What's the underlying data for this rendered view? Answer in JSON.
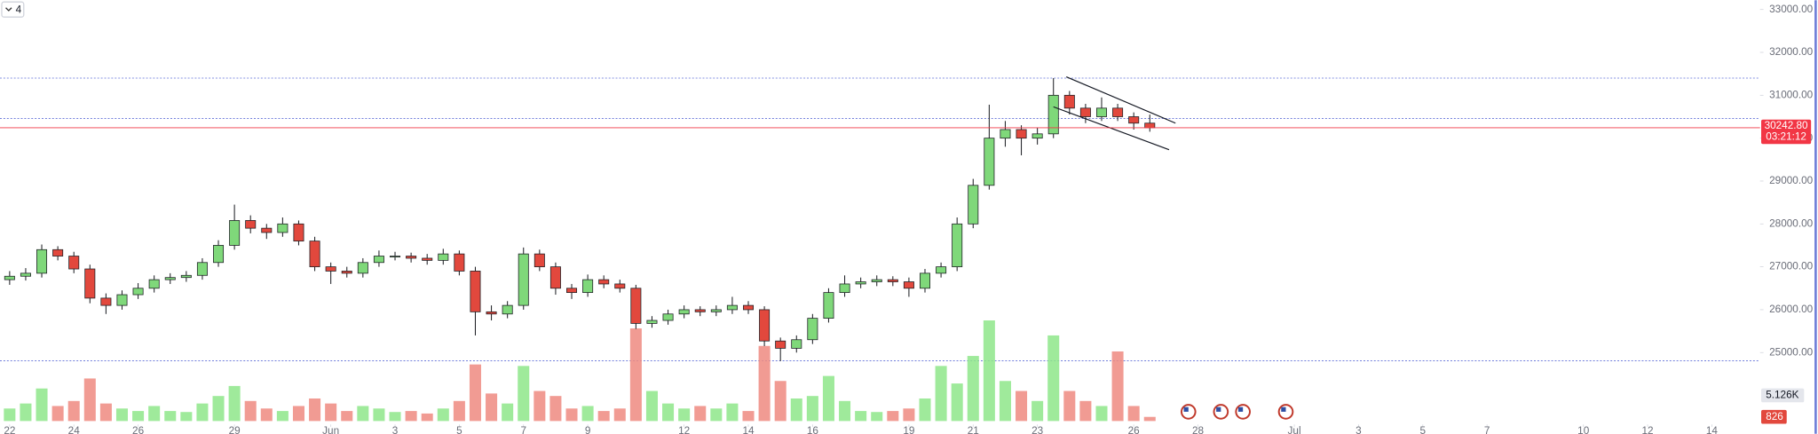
{
  "chart_data": {
    "type": "candlestick",
    "interval": "4",
    "x": [
      0,
      0.5,
      1,
      1.5,
      2,
      2.5,
      3,
      3.5,
      4,
      4.5,
      5,
      5.5,
      6,
      6.5,
      7,
      7.5,
      8,
      8.5,
      9,
      9.5,
      10,
      10.5,
      11,
      11.5,
      12,
      12.5,
      13,
      13.5,
      14,
      14.5,
      15,
      15.5,
      16,
      16.5,
      17,
      17.5,
      18,
      18.5,
      19,
      19.5,
      20,
      20.5,
      21,
      21.5,
      22,
      22.5,
      23,
      23.5,
      24,
      24.5,
      25,
      25.5,
      26,
      26.5,
      27,
      27.5,
      28,
      28.5,
      29,
      29.5,
      30,
      30.5,
      31,
      31.5,
      32,
      32.5,
      33,
      33.5,
      34,
      34.5,
      35,
      35.5
    ],
    "open": [
      26700,
      26780,
      26850,
      27400,
      27250,
      26950,
      26270,
      26100,
      26350,
      26500,
      26700,
      26750,
      26800,
      27100,
      27500,
      28080,
      27900,
      27800,
      28000,
      27600,
      27000,
      26900,
      26850,
      27100,
      27250,
      27250,
      27200,
      27150,
      27300,
      26900,
      25950,
      25900,
      26100,
      27300,
      27000,
      26500,
      26400,
      26700,
      26600,
      26500,
      25680,
      25750,
      25900,
      26000,
      25950,
      26000,
      26100,
      26000,
      25270,
      25100,
      25300,
      25800,
      26400,
      26600,
      26650,
      26700,
      26650,
      26500,
      26850,
      27000,
      28000,
      28900,
      30000,
      30200,
      30000,
      30100,
      31000,
      30700,
      30500,
      30700,
      30500,
      30350
    ],
    "high": [
      26900,
      26970,
      27520,
      27480,
      27350,
      27050,
      26380,
      26450,
      26620,
      26800,
      26850,
      26900,
      27200,
      27620,
      28450,
      28200,
      28000,
      28150,
      28080,
      27700,
      27100,
      27000,
      27200,
      27380,
      27350,
      27330,
      27300,
      27420,
      27380,
      27000,
      26100,
      26200,
      27450,
      27400,
      27100,
      26600,
      26820,
      26800,
      26700,
      26580,
      25850,
      26000,
      26100,
      26080,
      26100,
      26300,
      26200,
      26080,
      25350,
      25400,
      25900,
      26500,
      26800,
      26750,
      26800,
      26780,
      26750,
      26950,
      27100,
      28150,
      29050,
      30780,
      30400,
      30300,
      30250,
      31400,
      31100,
      30800,
      30950,
      30800,
      30600,
      30550
    ],
    "low": [
      26580,
      26680,
      26750,
      27150,
      26850,
      26150,
      25900,
      26000,
      26250,
      26400,
      26600,
      26650,
      26700,
      27000,
      27400,
      27780,
      27650,
      27700,
      27500,
      26900,
      26600,
      26750,
      26750,
      27000,
      27150,
      27100,
      27050,
      27050,
      26800,
      25400,
      25750,
      25800,
      26000,
      26900,
      26350,
      26250,
      26300,
      26500,
      26400,
      25550,
      25580,
      25650,
      25800,
      25850,
      25850,
      25900,
      25900,
      25150,
      24800,
      25000,
      25200,
      25700,
      26300,
      26500,
      26550,
      26550,
      26300,
      26400,
      26750,
      26900,
      27900,
      28800,
      29800,
      29600,
      29850,
      30000,
      30550,
      30350,
      30400,
      30400,
      30200,
      30150
    ],
    "close": [
      26780,
      26850,
      27400,
      27250,
      26950,
      26270,
      26100,
      26350,
      26500,
      26700,
      26750,
      26800,
      27100,
      27500,
      28080,
      27900,
      27800,
      28000,
      27600,
      27000,
      26900,
      26850,
      27100,
      27250,
      27250,
      27200,
      27150,
      27300,
      26900,
      25950,
      25900,
      26100,
      27300,
      27000,
      26500,
      26400,
      26700,
      26600,
      26500,
      25680,
      25750,
      25900,
      26000,
      25950,
      26000,
      26100,
      26000,
      25270,
      25100,
      25300,
      25800,
      26400,
      26600,
      26650,
      26700,
      26650,
      26500,
      26850,
      27000,
      28000,
      28900,
      30000,
      30200,
      30000,
      30100,
      31000,
      30700,
      30500,
      30700,
      30500,
      30350,
      30242.8
    ],
    "volume": [
      2500,
      3500,
      6500,
      3000,
      4000,
      8500,
      3500,
      2500,
      2000,
      3000,
      2000,
      1800,
      3500,
      5000,
      7000,
      4000,
      2500,
      2000,
      3000,
      4500,
      3500,
      2000,
      3000,
      2500,
      1800,
      2000,
      1500,
      2500,
      4000,
      11300,
      5500,
      3500,
      11000,
      6000,
      5000,
      2500,
      3000,
      2000,
      2500,
      18500,
      6000,
      3500,
      2500,
      3000,
      2500,
      3500,
      2000,
      15000,
      8000,
      4500,
      5000,
      9000,
      4000,
      2000,
      1800,
      2000,
      2500,
      4500,
      11000,
      7500,
      13000,
      20100,
      8000,
      6000,
      4000,
      17100,
      6000,
      4000,
      3000,
      13900,
      3000,
      826
    ],
    "colors": {
      "up": "#7fd87a",
      "down": "#e2483d",
      "up_volume": "#8ee68a",
      "down_volume": "#ee8a80",
      "outline": "#1f2126"
    },
    "xlim": [
      -0.3,
      54.5
    ],
    "xticks": [
      {
        "value": 0,
        "label": "22"
      },
      {
        "value": 2,
        "label": "24"
      },
      {
        "value": 4,
        "label": "26"
      },
      {
        "value": 7,
        "label": "29"
      },
      {
        "value": 10,
        "label": "Jun"
      },
      {
        "value": 12,
        "label": "3"
      },
      {
        "value": 14,
        "label": "5"
      },
      {
        "value": 16,
        "label": "7"
      },
      {
        "value": 18,
        "label": "9"
      },
      {
        "value": 21,
        "label": "12"
      },
      {
        "value": 23,
        "label": "14"
      },
      {
        "value": 25,
        "label": "16"
      },
      {
        "value": 28,
        "label": "19"
      },
      {
        "value": 30,
        "label": "21"
      },
      {
        "value": 32,
        "label": "23"
      },
      {
        "value": 35,
        "label": "26"
      },
      {
        "value": 37,
        "label": "28"
      },
      {
        "value": 40,
        "label": "Jul"
      },
      {
        "value": 42,
        "label": "3"
      },
      {
        "value": 44,
        "label": "5"
      },
      {
        "value": 46,
        "label": "7"
      },
      {
        "value": 49,
        "label": "10"
      },
      {
        "value": 51,
        "label": "12"
      },
      {
        "value": 53,
        "label": "14"
      }
    ],
    "ylim": [
      23350,
      33216
    ],
    "yticks": [
      {
        "value": 25000,
        "label": "25000.00"
      },
      {
        "value": 26000,
        "label": "26000.00"
      },
      {
        "value": 27000,
        "label": "27000.00"
      },
      {
        "value": 28000,
        "label": "28000.00"
      },
      {
        "value": 29000,
        "label": "29000.00"
      },
      {
        "value": 30000,
        "label": "30000.00"
      },
      {
        "value": 31000,
        "label": "31000.00"
      },
      {
        "value": 32000,
        "label": "32000.00"
      },
      {
        "value": 33000,
        "label": "33000.00"
      }
    ],
    "y2lim": [
      0,
      22000
    ],
    "volume_labels": [
      {
        "value": 5126,
        "label": "5.126K"
      },
      {
        "value": 826,
        "label": "826"
      }
    ],
    "hlines": [
      {
        "value": 31400,
        "color": "#5b6bd6"
      },
      {
        "value": 30460,
        "color": "#5b6bd6"
      },
      {
        "value": 24810,
        "color": "#5b6bd6"
      }
    ],
    "trendlines": [
      {
        "x": [
          32.9,
          36.3
        ],
        "y": [
          31430,
          30350
        ]
      },
      {
        "x": [
          32.5,
          36.1
        ],
        "y": [
          30730,
          29730
        ]
      }
    ],
    "last_price": {
      "value": 30242.8,
      "label": "30242.80",
      "color": "#f23645"
    },
    "countdown": "03:21:12"
  }
}
